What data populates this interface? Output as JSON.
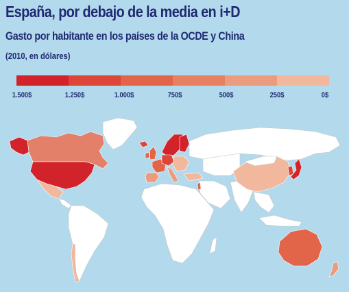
{
  "title": "España, por debajo de la media en i+D",
  "subtitle": "Gasto por habitante en los países de la OCDE y China",
  "unit": "(2010, en dólares)",
  "legend": {
    "colors": [
      "#d2222a",
      "#dc4538",
      "#e2654a",
      "#e78060",
      "#ec9c7e",
      "#f1b89d"
    ],
    "labels": [
      "1.500$",
      "1.250$",
      "1.000$",
      "750$",
      "500$",
      "250$",
      "0$"
    ]
  },
  "colors": {
    "background": "#b3d9ec",
    "land_no_data": "#ffffff",
    "text": "#1f2a72"
  }
}
